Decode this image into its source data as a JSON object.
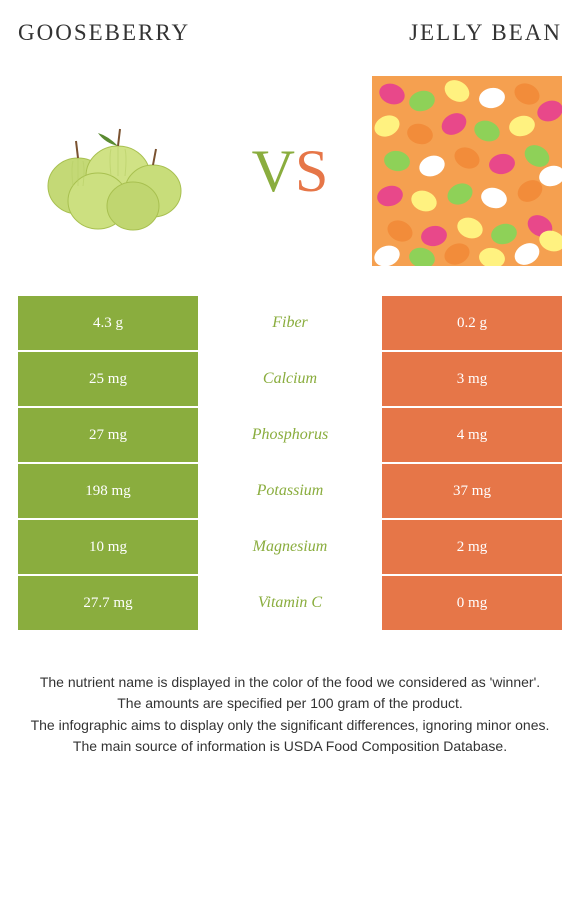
{
  "header": {
    "left_title": "GOOSEBERRY",
    "right_title": "JELLY BEAN"
  },
  "vs": {
    "v": "V",
    "s": "S"
  },
  "colors": {
    "left": "#8aad3e",
    "right": "#e67648",
    "text": "#333333"
  },
  "rows": [
    {
      "nutrient": "Fiber",
      "left": "4.3 g",
      "right": "0.2 g",
      "winner": "left"
    },
    {
      "nutrient": "Calcium",
      "left": "25 mg",
      "right": "3 mg",
      "winner": "left"
    },
    {
      "nutrient": "Phosphorus",
      "left": "27 mg",
      "right": "4 mg",
      "winner": "left"
    },
    {
      "nutrient": "Potassium",
      "left": "198 mg",
      "right": "37 mg",
      "winner": "left"
    },
    {
      "nutrient": "Magnesium",
      "left": "10 mg",
      "right": "2 mg",
      "winner": "left"
    },
    {
      "nutrient": "Vitamin C",
      "left": "27.7 mg",
      "right": "0 mg",
      "winner": "left"
    }
  ],
  "footnotes": [
    "The nutrient name is displayed in the color of the food we considered as 'winner'.",
    "The amounts are specified per 100 gram of the product.",
    "The infographic aims to display only the significant differences, ignoring minor ones.",
    "The main source of information is USDA Food Composition Database."
  ]
}
